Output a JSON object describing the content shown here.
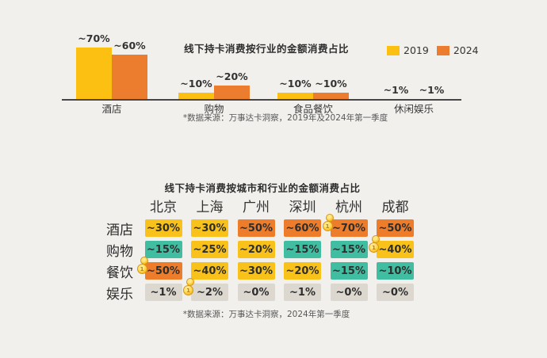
{
  "colors": {
    "background": "#f1f0ed",
    "bar_2019": "#fbc011",
    "bar_2024": "#ec7d2e",
    "axis": "#464646",
    "text_dark": "#2e2e2e",
    "footnote_gray": "#575757"
  },
  "chart_data": [
    {
      "type": "bar",
      "title": "线下持卡消费按行业的金额消费占比",
      "categories": [
        "酒店",
        "购物",
        "食品餐饮",
        "休闲娱乐"
      ],
      "series": [
        {
          "name": "2019",
          "color": "#fbc011",
          "values": [
            70,
            10,
            10,
            1
          ],
          "value_labels": [
            "~70%",
            "~10%",
            "~10%",
            "~1%"
          ]
        },
        {
          "name": "2024",
          "color": "#ec7d2e",
          "values": [
            60,
            20,
            10,
            1
          ],
          "value_labels": [
            "~60%",
            "~20%",
            "~10%",
            "~1%"
          ]
        }
      ],
      "ylim": [
        0,
        100
      ],
      "grid": false,
      "legend_position": "top-right",
      "footnote": "*数据来源：万事达卡洞察，2019年及2024年第一季度"
    },
    {
      "type": "heatmap",
      "title": "线下持卡消费按城市和行业的金额消费占比",
      "columns": [
        "北京",
        "上海",
        "广州",
        "深圳",
        "杭州",
        "成都"
      ],
      "tones": {
        "yellow": "#f9c21a",
        "orange": "#ed7d2b",
        "teal": "#41bea1",
        "gray": "#dcd8cf"
      },
      "rows": [
        {
          "label": "酒店",
          "cells": [
            {
              "label": "~30%",
              "value": 30,
              "tone": "yellow",
              "coin": false
            },
            {
              "label": "~30%",
              "value": 30,
              "tone": "yellow",
              "coin": false
            },
            {
              "label": "~50%",
              "value": 50,
              "tone": "orange",
              "coin": false
            },
            {
              "label": "~60%",
              "value": 60,
              "tone": "orange",
              "coin": false
            },
            {
              "label": "~70%",
              "value": 70,
              "tone": "orange",
              "coin": true
            },
            {
              "label": "~50%",
              "value": 50,
              "tone": "orange",
              "coin": false
            }
          ]
        },
        {
          "label": "购物",
          "cells": [
            {
              "label": "~15%",
              "value": 15,
              "tone": "teal",
              "coin": false
            },
            {
              "label": "~25%",
              "value": 25,
              "tone": "yellow",
              "coin": false
            },
            {
              "label": "~20%",
              "value": 20,
              "tone": "yellow",
              "coin": false
            },
            {
              "label": "~15%",
              "value": 15,
              "tone": "teal",
              "coin": false
            },
            {
              "label": "~15%",
              "value": 15,
              "tone": "teal",
              "coin": false
            },
            {
              "label": "~40%",
              "value": 40,
              "tone": "yellow",
              "coin": true
            }
          ]
        },
        {
          "label": "餐饮",
          "cells": [
            {
              "label": "~50%",
              "value": 50,
              "tone": "orange",
              "coin": true
            },
            {
              "label": "~40%",
              "value": 40,
              "tone": "yellow",
              "coin": false
            },
            {
              "label": "~30%",
              "value": 30,
              "tone": "yellow",
              "coin": false
            },
            {
              "label": "~20%",
              "value": 20,
              "tone": "yellow",
              "coin": false
            },
            {
              "label": "~15%",
              "value": 15,
              "tone": "teal",
              "coin": false
            },
            {
              "label": "~10%",
              "value": 10,
              "tone": "teal",
              "coin": false
            }
          ]
        },
        {
          "label": "娱乐",
          "cells": [
            {
              "label": "~1%",
              "value": 1,
              "tone": "gray",
              "coin": false
            },
            {
              "label": "~2%",
              "value": 2,
              "tone": "gray",
              "coin": true
            },
            {
              "label": "~0%",
              "value": 0,
              "tone": "gray",
              "coin": false
            },
            {
              "label": "~1%",
              "value": 1,
              "tone": "gray",
              "coin": false
            },
            {
              "label": "~0%",
              "value": 0,
              "tone": "gray",
              "coin": false
            },
            {
              "label": "~0%",
              "value": 0,
              "tone": "gray",
              "coin": false
            }
          ]
        }
      ],
      "footnote": "*数据来源：万事达卡洞察，2024年第一季度"
    }
  ]
}
